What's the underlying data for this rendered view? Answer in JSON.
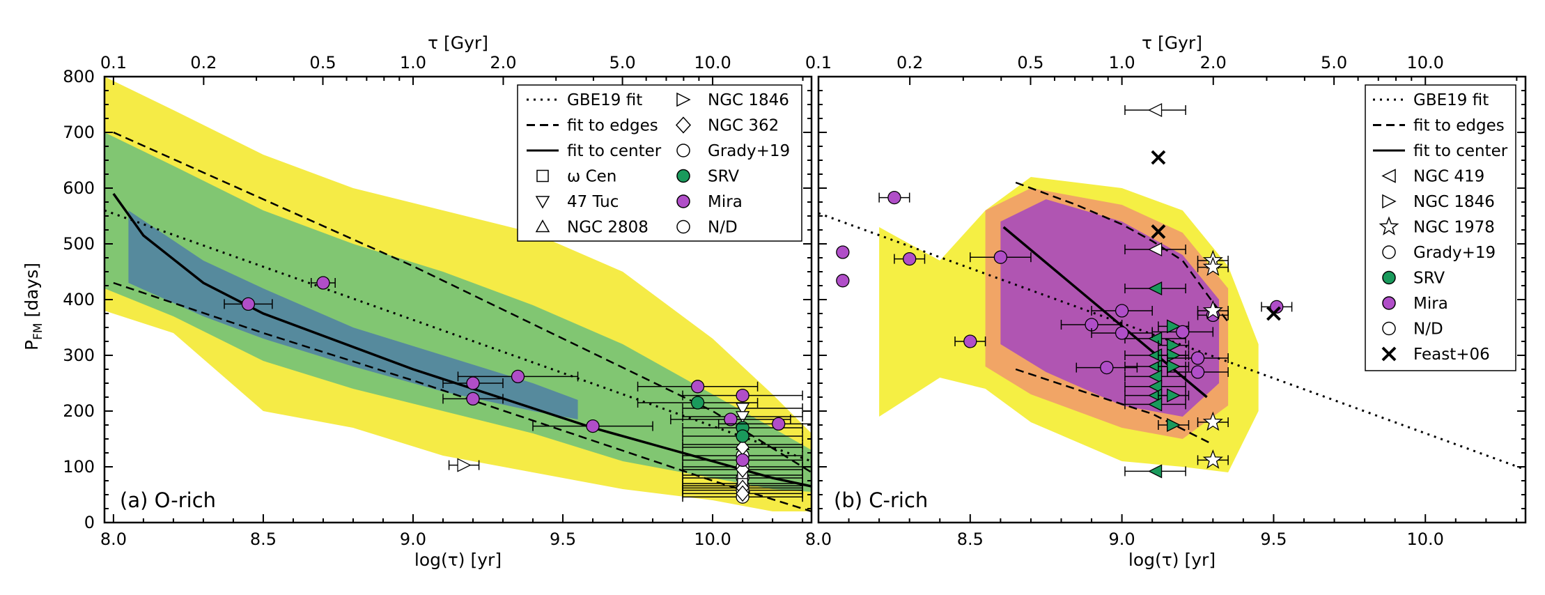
{
  "figure": {
    "ylabel": "P_FM [days]",
    "ylabel_main": "P",
    "ylabel_sub": "FM",
    "ylabel_tail": " [days]"
  },
  "chart_data": [
    {
      "type": "scatter",
      "panel_label": "(a) O-rich",
      "xlabel": "log(τ) [yr]",
      "top_xlabel": "τ [Gyr]",
      "xlim": [
        7.97,
        10.33
      ],
      "ylim": [
        0,
        800
      ],
      "xticks": [
        "8.0",
        "8.5",
        "9.0",
        "9.5",
        "10.0"
      ],
      "xtick_values": [
        8.0,
        8.5,
        9.0,
        9.5,
        10.0
      ],
      "yticks": [
        "0",
        "100",
        "200",
        "300",
        "400",
        "500",
        "600",
        "700",
        "800"
      ],
      "top_ticks": [
        "0.1",
        "0.2",
        "0.5",
        "1.0",
        "2.0",
        "5.0",
        "10.0"
      ],
      "top_tick_values": [
        0.1,
        0.2,
        0.5,
        1.0,
        2.0,
        5.0,
        10.0
      ],
      "legend_location": "top-right",
      "legend": [
        "GBE19 fit",
        "fit to edges",
        "fit to center",
        "ω Cen",
        "47 Tuc",
        "NGC 2808",
        "NGC 1846",
        "NGC 362",
        "Grady+19",
        "SRV",
        "Mira",
        "N/D"
      ],
      "lines": {
        "gbe19_fit": [
          [
            7.97,
            560
          ],
          [
            10.33,
            110
          ]
        ],
        "edge_upper": [
          [
            8.0,
            700
          ],
          [
            8.5,
            580
          ],
          [
            9.0,
            460
          ],
          [
            9.5,
            330
          ],
          [
            10.0,
            200
          ],
          [
            10.33,
            90
          ]
        ],
        "edge_lower": [
          [
            8.0,
            430
          ],
          [
            8.5,
            340
          ],
          [
            9.0,
            255
          ],
          [
            9.5,
            165
          ],
          [
            10.0,
            75
          ],
          [
            10.33,
            20
          ]
        ],
        "center": [
          [
            8.0,
            590
          ],
          [
            8.1,
            515
          ],
          [
            8.3,
            430
          ],
          [
            8.5,
            375
          ],
          [
            8.7,
            335
          ],
          [
            9.0,
            275
          ],
          [
            9.2,
            240
          ],
          [
            9.4,
            205
          ],
          [
            9.6,
            170
          ],
          [
            9.8,
            140
          ],
          [
            10.0,
            110
          ],
          [
            10.2,
            80
          ],
          [
            10.33,
            65
          ]
        ]
      },
      "heatmap_bands": {
        "yellow": [
          [
            7.97,
            800,
            380
          ],
          [
            8.2,
            740,
            340
          ],
          [
            8.5,
            660,
            200
          ],
          [
            8.8,
            600,
            170
          ],
          [
            9.1,
            560,
            120
          ],
          [
            9.4,
            520,
            90
          ],
          [
            9.7,
            450,
            60
          ],
          [
            10.0,
            330,
            40
          ],
          [
            10.2,
            230,
            20
          ],
          [
            10.33,
            160,
            20
          ]
        ],
        "green": [
          [
            7.97,
            700,
            420
          ],
          [
            8.2,
            640,
            370
          ],
          [
            8.5,
            560,
            290
          ],
          [
            8.8,
            500,
            240
          ],
          [
            9.1,
            450,
            200
          ],
          [
            9.4,
            390,
            160
          ],
          [
            9.7,
            320,
            110
          ],
          [
            10.0,
            230,
            80
          ],
          [
            10.2,
            170,
            60
          ],
          [
            10.33,
            130,
            55
          ]
        ],
        "blue": [
          [
            8.05,
            560,
            430
          ],
          [
            8.3,
            470,
            370
          ],
          [
            8.5,
            420,
            330
          ],
          [
            8.8,
            350,
            280
          ],
          [
            9.1,
            300,
            235
          ],
          [
            9.4,
            250,
            200
          ],
          [
            9.55,
            220,
            185
          ]
        ]
      },
      "points": {
        "mira": [
          {
            "x": 8.45,
            "y": 392,
            "xerr": 0.08
          },
          {
            "x": 8.7,
            "y": 430,
            "xerr": 0.04
          },
          {
            "x": 9.2,
            "y": 250,
            "xerr": 0.1
          },
          {
            "x": 9.2,
            "y": 222,
            "xerr": 0.1
          },
          {
            "x": 9.35,
            "y": 262,
            "xerr": 0.2
          },
          {
            "x": 9.6,
            "y": 173,
            "xerr": 0.2
          },
          {
            "x": 9.95,
            "y": 244,
            "xerr": 0.2
          },
          {
            "x": 10.1,
            "y": 228,
            "xerr": 0.2
          },
          {
            "x": 10.06,
            "y": 185,
            "xerr": 0.2
          },
          {
            "x": 10.1,
            "y": 112,
            "xerr": 0.2
          },
          {
            "x": 10.22,
            "y": 177,
            "xerr": 0.2
          }
        ],
        "srv": [
          {
            "x": 9.95,
            "y": 215,
            "xerr": 0.2
          },
          {
            "x": 10.1,
            "y": 170,
            "xerr": 0.2
          },
          {
            "x": 10.1,
            "y": 155,
            "xerr": 0.2
          }
        ],
        "ngc1846": [
          {
            "x": 9.17,
            "y": 103,
            "xerr": 0.05
          }
        ],
        "ngc362": [
          {
            "x": 10.1,
            "y": 135,
            "xerr": 0.2
          },
          {
            "x": 10.1,
            "y": 95,
            "xerr": 0.2
          },
          {
            "x": 10.1,
            "y": 62,
            "xerr": 0.2
          },
          {
            "x": 10.1,
            "y": 52,
            "xerr": 0.2
          }
        ],
        "cen": [
          {
            "x": 10.1,
            "y": 85,
            "xerr": 0.2
          },
          {
            "x": 10.1,
            "y": 70,
            "xerr": 0.2
          }
        ],
        "tuc47": [
          {
            "x": 10.1,
            "y": 205,
            "xerr": 0.2
          },
          {
            "x": 10.1,
            "y": 190,
            "xerr": 0.2
          }
        ],
        "ngc2808": [
          {
            "x": 10.1,
            "y": 140,
            "xerr": 0.2
          }
        ],
        "grady": [
          {
            "x": 10.1,
            "y": 120,
            "xerr": 0.2
          },
          {
            "x": 10.1,
            "y": 100,
            "xerr": 0.2
          },
          {
            "x": 10.1,
            "y": 80,
            "xerr": 0.2
          },
          {
            "x": 10.1,
            "y": 66,
            "xerr": 0.2
          },
          {
            "x": 10.1,
            "y": 58,
            "xerr": 0.2
          },
          {
            "x": 10.1,
            "y": 46,
            "xerr": 0.2
          }
        ],
        "nd": []
      }
    },
    {
      "type": "scatter",
      "panel_label": "(b) C-rich",
      "xlabel": "log(τ) [yr]",
      "top_xlabel": "τ [Gyr]",
      "xlim": [
        8.0,
        10.33
      ],
      "ylim": [
        0,
        800
      ],
      "xticks": [
        "8.0",
        "8.5",
        "9.0",
        "9.5",
        "10.0"
      ],
      "xtick_values": [
        8.0,
        8.5,
        9.0,
        9.5,
        10.0
      ],
      "yticks": [
        "0",
        "100",
        "200",
        "300",
        "400",
        "500",
        "600",
        "700",
        "800"
      ],
      "top_ticks": [
        "0.1",
        "0.2",
        "0.5",
        "1.0",
        "2.0",
        "5.0",
        "10.0"
      ],
      "top_tick_values": [
        0.1,
        0.2,
        0.5,
        1.0,
        2.0,
        5.0,
        10.0
      ],
      "legend_location": "top-right",
      "legend": [
        "GBE19 fit",
        "fit to edges",
        "fit to center",
        "NGC 419",
        "NGC 1846",
        "NGC 1978",
        "Grady+19",
        "SRV",
        "Mira",
        "N/D",
        "Feast+06"
      ],
      "lines": {
        "gbe19_fit": [
          [
            8.0,
            555
          ],
          [
            10.33,
            95
          ]
        ],
        "edge_upper": [
          [
            8.65,
            610
          ],
          [
            8.85,
            570
          ],
          [
            9.0,
            535
          ],
          [
            9.1,
            505
          ],
          [
            9.2,
            470
          ],
          [
            9.3,
            395
          ],
          [
            9.35,
            360
          ]
        ],
        "edge_lower": [
          [
            8.65,
            275
          ],
          [
            8.9,
            230
          ],
          [
            9.1,
            195
          ],
          [
            9.3,
            140
          ]
        ],
        "center": [
          [
            8.61,
            530
          ],
          [
            9.28,
            225
          ]
        ]
      },
      "heatmap_bands": {
        "yellow": [
          [
            8.2,
            530,
            190
          ],
          [
            8.4,
            470,
            260
          ],
          [
            8.55,
            560,
            240
          ],
          [
            8.7,
            620,
            180
          ],
          [
            9.0,
            600,
            110
          ],
          [
            9.2,
            560,
            100
          ],
          [
            9.35,
            460,
            90
          ],
          [
            9.45,
            320,
            200
          ]
        ],
        "orange": [
          [
            8.55,
            560,
            280
          ],
          [
            8.7,
            600,
            230
          ],
          [
            9.0,
            570,
            170
          ],
          [
            9.2,
            520,
            150
          ],
          [
            9.35,
            420,
            210
          ]
        ],
        "purple": [
          [
            8.6,
            540,
            320
          ],
          [
            8.75,
            580,
            270
          ],
          [
            9.0,
            540,
            210
          ],
          [
            9.2,
            480,
            190
          ],
          [
            9.32,
            400,
            250
          ]
        ]
      },
      "points": {
        "mira": [
          {
            "x": 8.08,
            "y": 485,
            "xerr": 0.0
          },
          {
            "x": 8.08,
            "y": 434,
            "xerr": 0.0
          },
          {
            "x": 8.25,
            "y": 583,
            "xerr": 0.05
          },
          {
            "x": 8.3,
            "y": 473,
            "xerr": 0.05
          },
          {
            "x": 8.5,
            "y": 325,
            "xerr": 0.05
          },
          {
            "x": 8.6,
            "y": 476,
            "xerr": 0.1
          },
          {
            "x": 8.9,
            "y": 355,
            "xerr": 0.1
          },
          {
            "x": 8.95,
            "y": 278,
            "xerr": 0.1
          },
          {
            "x": 9.0,
            "y": 380,
            "xerr": 0.1
          },
          {
            "x": 9.0,
            "y": 340,
            "xerr": 0.1
          },
          {
            "x": 9.2,
            "y": 342,
            "xerr": 0.1
          },
          {
            "x": 9.25,
            "y": 295,
            "xerr": 0.1
          },
          {
            "x": 9.25,
            "y": 270,
            "xerr": 0.1
          },
          {
            "x": 9.3,
            "y": 372,
            "xerr": 0.05
          },
          {
            "x": 9.51,
            "y": 387,
            "xerr": 0.05
          }
        ],
        "srv_ngc419": [
          {
            "x": 9.11,
            "y": 420,
            "xerr": 0.1
          },
          {
            "x": 9.11,
            "y": 330,
            "xerr": 0.1
          },
          {
            "x": 9.11,
            "y": 300,
            "xerr": 0.1
          },
          {
            "x": 9.11,
            "y": 280,
            "xerr": 0.1
          },
          {
            "x": 9.11,
            "y": 262,
            "xerr": 0.1
          },
          {
            "x": 9.11,
            "y": 244,
            "xerr": 0.1
          },
          {
            "x": 9.11,
            "y": 228,
            "xerr": 0.1
          },
          {
            "x": 9.11,
            "y": 212,
            "xerr": 0.1
          },
          {
            "x": 9.11,
            "y": 92,
            "xerr": 0.1
          }
        ],
        "srv_ngc1846": [
          {
            "x": 9.17,
            "y": 352,
            "xerr": 0.05
          },
          {
            "x": 9.17,
            "y": 318,
            "xerr": 0.05
          },
          {
            "x": 9.17,
            "y": 300,
            "xerr": 0.05
          },
          {
            "x": 9.17,
            "y": 280,
            "xerr": 0.05
          },
          {
            "x": 9.17,
            "y": 228,
            "xerr": 0.05
          },
          {
            "x": 9.17,
            "y": 175,
            "xerr": 0.05
          }
        ],
        "ngc419_open": [
          {
            "x": 9.11,
            "y": 740,
            "xerr": 0.1
          },
          {
            "x": 9.11,
            "y": 490,
            "xerr": 0.1
          }
        ],
        "ngc1978": [
          {
            "x": 9.3,
            "y": 470,
            "xerr": 0.05
          },
          {
            "x": 9.3,
            "y": 458,
            "xerr": 0.05
          },
          {
            "x": 9.3,
            "y": 380,
            "xerr": 0.05
          },
          {
            "x": 9.3,
            "y": 180,
            "xerr": 0.05
          },
          {
            "x": 9.3,
            "y": 112,
            "xerr": 0.05
          }
        ],
        "feast": [
          {
            "x": 9.12,
            "y": 655
          },
          {
            "x": 9.12,
            "y": 522
          },
          {
            "x": 9.5,
            "y": 375
          }
        ]
      }
    }
  ]
}
